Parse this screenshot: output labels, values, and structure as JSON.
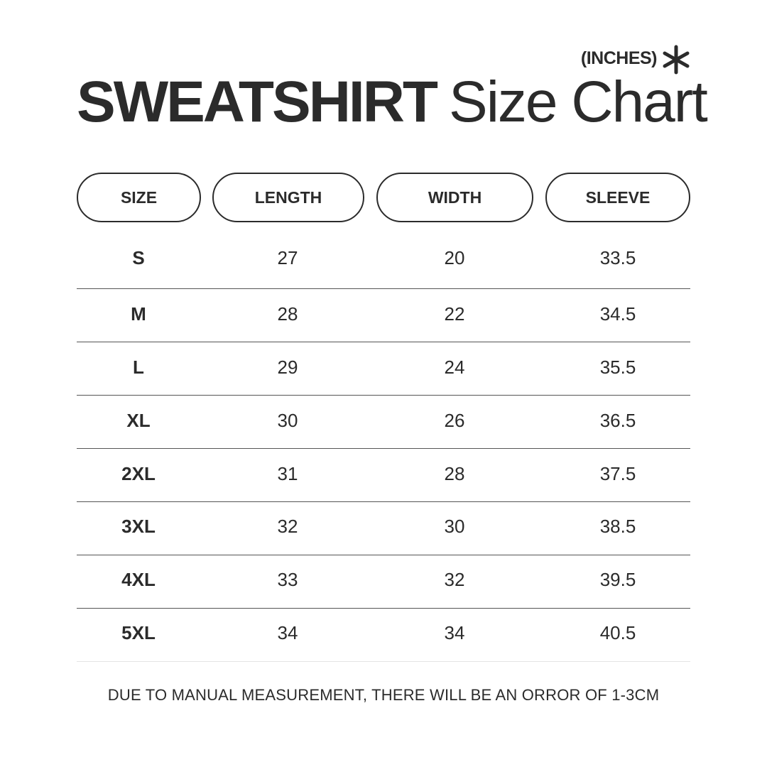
{
  "header": {
    "units": "(INCHES)",
    "title_bold": "SWEATSHIRT",
    "title_light": "Size Chart",
    "asterisk_icon": "asterisk-icon"
  },
  "table": {
    "columns": [
      "SIZE",
      "LENGTH",
      "WIDTH",
      "SLEEVE"
    ],
    "rows": [
      [
        "S",
        "27",
        "20",
        "33.5"
      ],
      [
        "M",
        "28",
        "22",
        "34.5"
      ],
      [
        "L",
        "29",
        "24",
        "35.5"
      ],
      [
        "XL",
        "30",
        "26",
        "36.5"
      ],
      [
        "2XL",
        "31",
        "28",
        "37.5"
      ],
      [
        "3XL",
        "32",
        "30",
        "38.5"
      ],
      [
        "4XL",
        "33",
        "32",
        "39.5"
      ],
      [
        "5XL",
        "34",
        "34",
        "40.5"
      ]
    ]
  },
  "footer": {
    "note": "DUE TO MANUAL MEASUREMENT, THERE WILL BE AN ORROR OF 1-3CM"
  },
  "colors": {
    "text": "#2b2b2b",
    "background": "#ffffff"
  }
}
